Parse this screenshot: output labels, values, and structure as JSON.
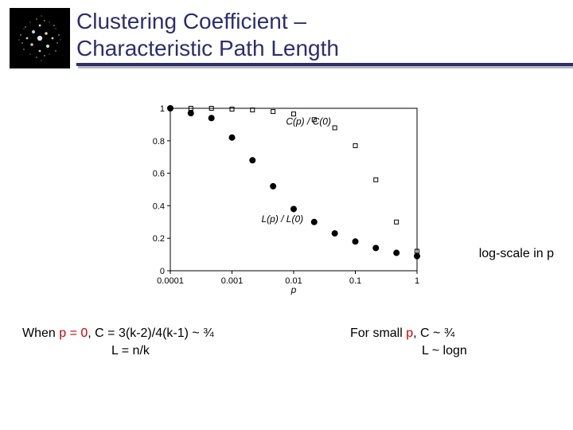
{
  "title": {
    "line1": "Clustering Coefficient –",
    "line2": "Characteristic Path Length",
    "color": "#2b2f6e",
    "fontsize": 28
  },
  "logo": {
    "bg": "#000000",
    "dot_colors": [
      "#ffffff",
      "#c8e4ff",
      "#ffe8b0",
      "#ffcccc",
      "#d4ffcc"
    ]
  },
  "chart": {
    "type": "scatter",
    "xlabel": "p",
    "xscale": "log",
    "xlim": [
      0.0001,
      1
    ],
    "xticks": [
      0.0001,
      0.001,
      0.01,
      0.1,
      1
    ],
    "xtick_labels": [
      "0.0001",
      "0.001",
      "0.01",
      "0.1",
      "1"
    ],
    "ylim": [
      0,
      1
    ],
    "yticks": [
      0,
      0.2,
      0.4,
      0.6,
      0.8,
      1
    ],
    "ytick_labels": [
      "0",
      "0.2",
      "0.4",
      "0.6",
      "0.8",
      "1"
    ],
    "background_color": "#ffffff",
    "frame_color": "#000000",
    "axis_fontsize": 11,
    "series": {
      "L_ratio": {
        "label": "L(p) / L(0)",
        "marker": "filled-circle",
        "size": 4,
        "color": "#000000",
        "points": [
          [
            0.0001,
            1.0
          ],
          [
            0.000215,
            0.97
          ],
          [
            0.000464,
            0.94
          ],
          [
            0.001,
            0.82
          ],
          [
            0.00215,
            0.68
          ],
          [
            0.00464,
            0.52
          ],
          [
            0.01,
            0.38
          ],
          [
            0.0215,
            0.3
          ],
          [
            0.0464,
            0.23
          ],
          [
            0.1,
            0.18
          ],
          [
            0.215,
            0.14
          ],
          [
            0.464,
            0.11
          ],
          [
            1.0,
            0.09
          ]
        ]
      },
      "C_ratio": {
        "label": "C(p) / C(0)",
        "marker": "open-square",
        "size": 5,
        "stroke": "#000000",
        "fill": "none",
        "points": [
          [
            0.0001,
            1.0
          ],
          [
            0.000215,
            1.0
          ],
          [
            0.000464,
            1.0
          ],
          [
            0.001,
            0.995
          ],
          [
            0.00215,
            0.99
          ],
          [
            0.00464,
            0.98
          ],
          [
            0.01,
            0.965
          ],
          [
            0.0215,
            0.93
          ],
          [
            0.0464,
            0.88
          ],
          [
            0.1,
            0.77
          ],
          [
            0.215,
            0.56
          ],
          [
            0.464,
            0.3
          ],
          [
            1.0,
            0.12
          ]
        ]
      }
    },
    "legend": {
      "C_text": "C(p) / C(0)",
      "C_pos": [
        0.0075,
        0.9
      ],
      "L_text": "L(p) / L(0)",
      "L_pos": [
        0.003,
        0.3
      ]
    }
  },
  "sidenote": "log-scale in p",
  "bottom_left": {
    "line1_pre": "When ",
    "line1_p": "p = 0",
    "line1_post": ", C = 3(k-2)/4(k-1) ~ ¾",
    "line2": "L = n/k"
  },
  "bottom_right": {
    "line1_pre": "For small ",
    "line1_p": "p",
    "line1_post": ", C ~ ¾",
    "line2": "L ~ logn"
  }
}
